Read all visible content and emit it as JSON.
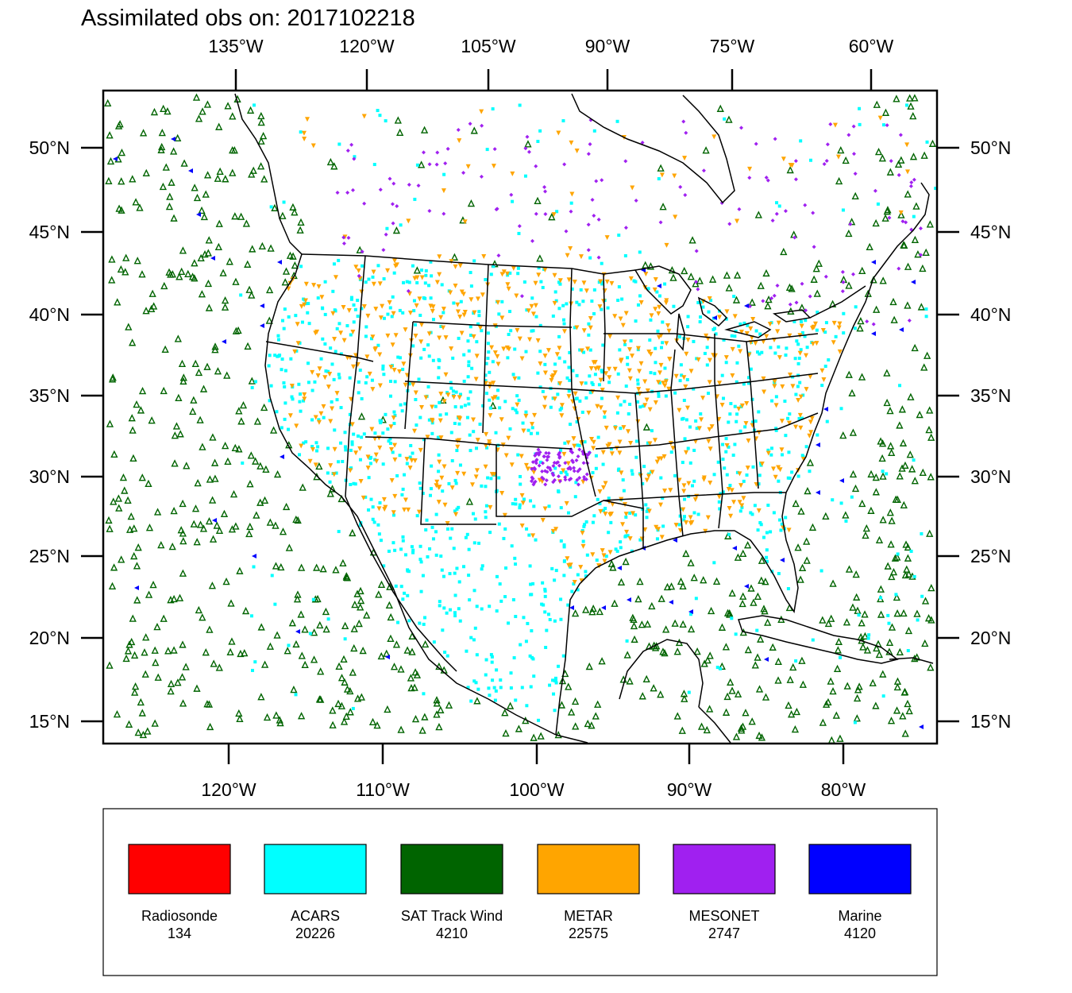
{
  "title": "Assimilated obs on: 2017102218",
  "map": {
    "top_lon_ticks": [
      "135°W",
      "120°W",
      "105°W",
      "90°W",
      "75°W",
      "60°W"
    ],
    "bottom_lon_ticks": [
      "120°W",
      "110°W",
      "100°W",
      "90°W",
      "80°W"
    ],
    "lat_ticks": [
      "50°N",
      "45°N",
      "40°N",
      "35°N",
      "30°N",
      "25°N",
      "20°N",
      "15°N"
    ]
  },
  "legend": [
    {
      "label": "Radiosonde",
      "count": "134",
      "color": "#ff0000"
    },
    {
      "label": "ACARS",
      "count": "20226",
      "color": "#00ffff"
    },
    {
      "label": "SAT Track Wind",
      "count": "4210",
      "color": "#006400"
    },
    {
      "label": "METAR",
      "count": "22575",
      "color": "#ffa500"
    },
    {
      "label": "MESONET",
      "count": "2747",
      "color": "#a020f0"
    },
    {
      "label": "Marine",
      "count": "4120",
      "color": "#0000ff"
    }
  ],
  "colors": {
    "acars": "#00ffff",
    "sat_track_wind": "#006400",
    "metar": "#ffa500",
    "mesonet": "#a020f0",
    "marine": "#0000ff",
    "radiosonde": "#ff0000",
    "coastline": "#000000"
  }
}
